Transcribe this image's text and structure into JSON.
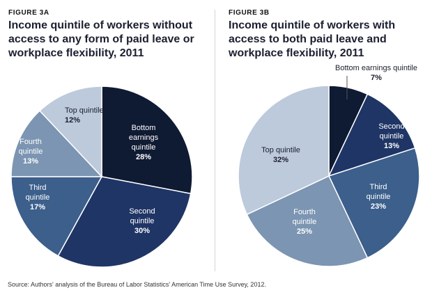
{
  "figure_a": {
    "label": "FIGURE 3A",
    "title": "Income quintile of workers without access to any form of paid leave or workplace flexibility, 2011"
  },
  "figure_b": {
    "label": "FIGURE 3B",
    "title": "Income quintile of workers with access to both paid leave and workplace flexibility, 2011"
  },
  "source": "Source: Authors' analysis of the Bureau of Labor Statistics' American Time Use Survey, 2012.",
  "colors": [
    "#0f1a33",
    "#1f3565",
    "#3c5f8b",
    "#7b95b2",
    "#bccadb"
  ],
  "chart_data": [
    {
      "type": "pie",
      "title": "Income quintile of workers without access to any form of paid leave or workplace flexibility, 2011",
      "categories": [
        "Bottom earnings quintile",
        "Second quintile",
        "Third quintile",
        "Fourth quintile",
        "Top quintile"
      ],
      "values": [
        28,
        30,
        17,
        13,
        12
      ],
      "value_labels": [
        "28%",
        "30%",
        "17%",
        "13%",
        "12%"
      ],
      "slice_labels": [
        [
          "Bottom",
          "earnings",
          "quintile"
        ],
        [
          "Second",
          "quintile"
        ],
        [
          "Third",
          "quintile"
        ],
        [
          "Fourth",
          "quintile"
        ],
        [
          "Top quintile"
        ]
      ],
      "colors": [
        "#0f1a33",
        "#1f3565",
        "#3c5f8b",
        "#7b95b2",
        "#bccadb"
      ]
    },
    {
      "type": "pie",
      "title": "Income quintile of workers with access to both paid leave and workplace flexibility, 2011",
      "categories": [
        "Bottom earnings quintile",
        "Second quintile",
        "Third quintile",
        "Fourth quintile",
        "Top quintile"
      ],
      "values": [
        7,
        13,
        23,
        25,
        32
      ],
      "value_labels": [
        "7%",
        "13%",
        "23%",
        "25%",
        "32%"
      ],
      "slice_labels": [
        [
          "Bottom earnings quintile"
        ],
        [
          "Second",
          "quintile"
        ],
        [
          "Third",
          "quintile"
        ],
        [
          "Fourth",
          "quintile"
        ],
        [
          "Top quintile"
        ]
      ],
      "colors": [
        "#0f1a33",
        "#1f3565",
        "#3c5f8b",
        "#7b95b2",
        "#bccadb"
      ]
    }
  ]
}
